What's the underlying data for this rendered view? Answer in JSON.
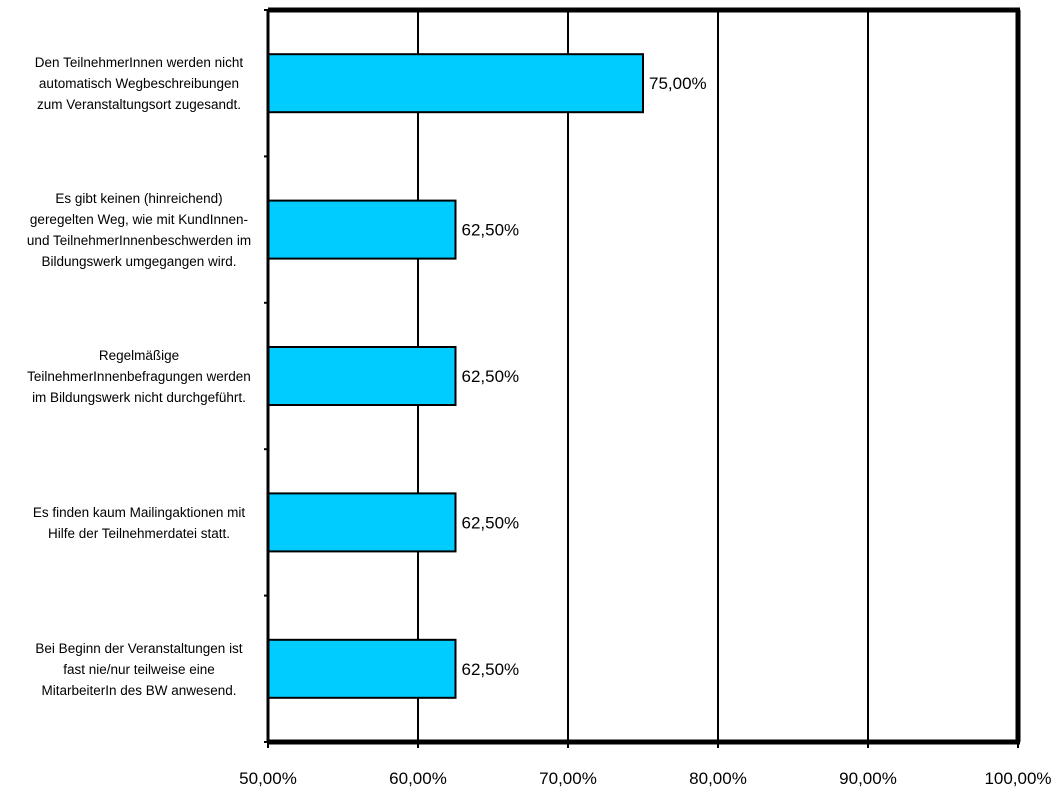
{
  "chart_data": {
    "type": "bar",
    "orientation": "horizontal",
    "categories": [
      "Den TeilnehmerInnen werden nicht\nautomatisch  Wegbeschreibungen\nzum Veranstaltungsort zugesandt.",
      "Es gibt keinen (hinreichend)\ngeregelten Weg, wie mit KundInnen-\nund TeilnehmerInnenbeschwerden im\nBildungswerk umgegangen wird.",
      "Regelmäßige\nTeilnehmerInnenbefragungen werden\nim Bildungswerk nicht durchgeführt.",
      "Es finden kaum Mailingaktionen mit\nHilfe der Teilnehmerdatei statt.",
      "Bei Beginn der Veranstaltungen ist\nfast nie/nur teilweise eine\nMitarbeiterIn des BW anwesend."
    ],
    "values": [
      75.0,
      62.5,
      62.5,
      62.5,
      62.5
    ],
    "value_labels": [
      "75,00%",
      "62,50%",
      "62,50%",
      "62,50%",
      "62,50%"
    ],
    "xlim": [
      50,
      100
    ],
    "x_ticks": [
      50,
      60,
      70,
      80,
      90,
      100
    ],
    "x_tick_labels": [
      "50,00%",
      "60,00%",
      "70,00%",
      "80,00%",
      "90,00%",
      "100,00%"
    ],
    "grid": true,
    "legend": "none",
    "bar_color": "#00ccff",
    "title": "",
    "xlabel": "",
    "ylabel": ""
  }
}
